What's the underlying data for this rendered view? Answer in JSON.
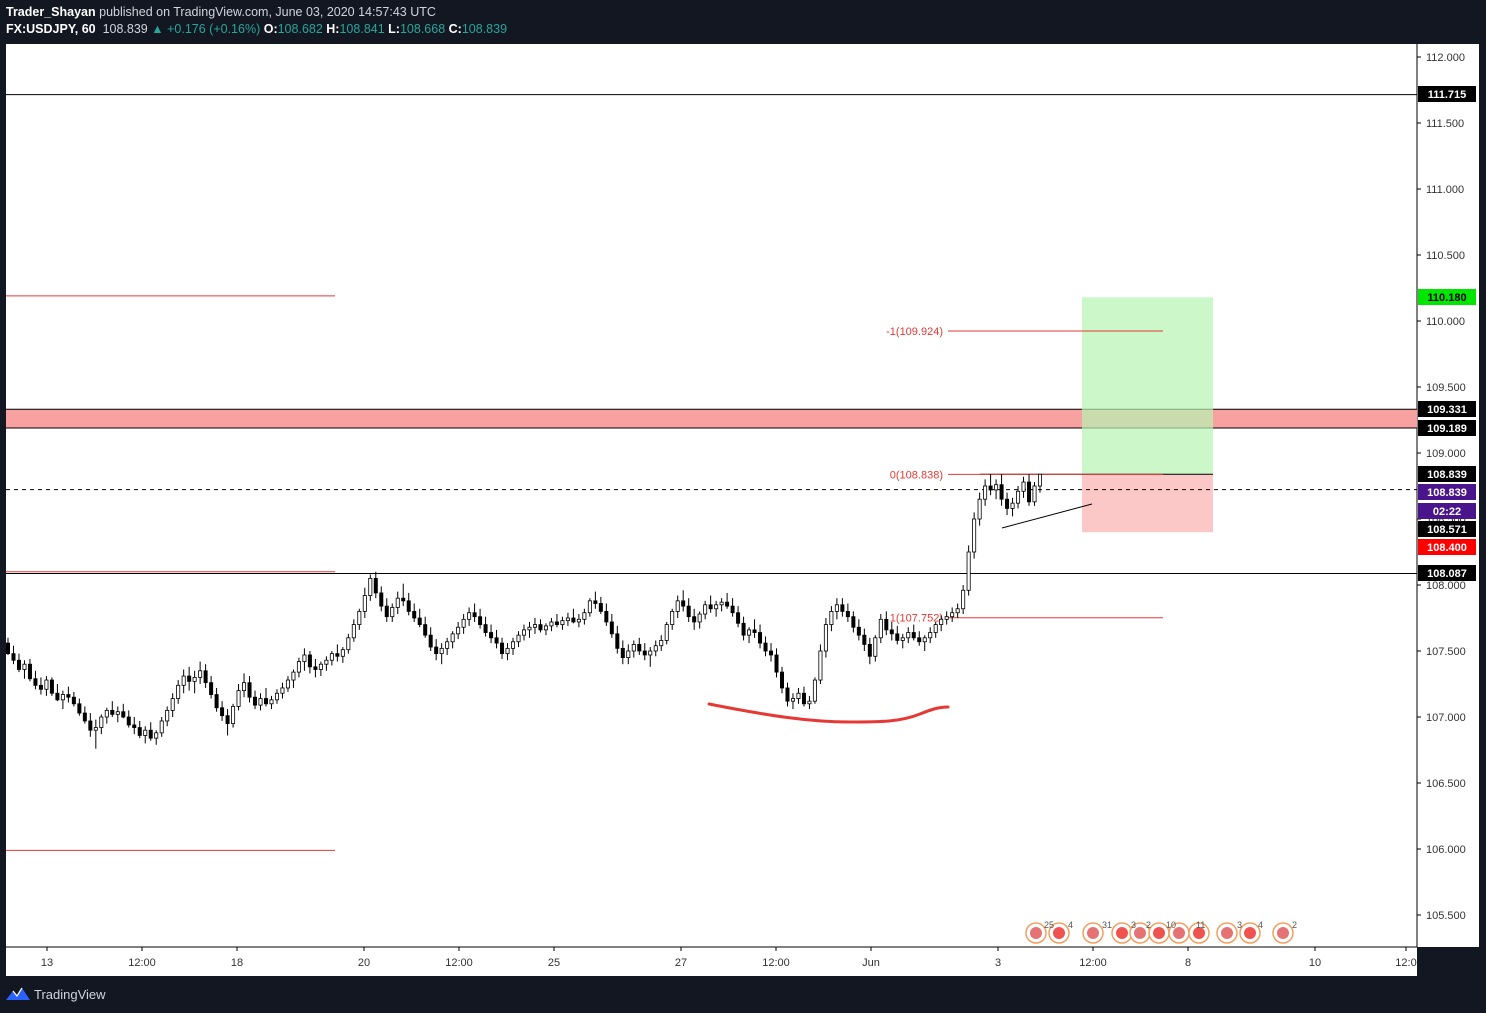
{
  "header": {
    "publisher": "Trader_Shayan",
    "published_text": "published on TradingView.com, June 03, 2020 14:57:43 UTC",
    "symbol": "FX:USDJPY, 60",
    "last": "108.839",
    "change": "+0.176 (+0.16%)",
    "o_label": "O:",
    "o_value": "108.682",
    "h_label": "H:",
    "h_value": "108.841",
    "l_label": "L:",
    "l_value": "108.668",
    "c_label": "C:",
    "c_value": "108.839"
  },
  "footer": {
    "brand": "TradingView"
  },
  "chart_data": {
    "type": "candlestick",
    "ylim": [
      105.25,
      112.3
    ],
    "y_ticks": [
      "112.000",
      "111.500",
      "111.000",
      "110.500",
      "110.000",
      "109.500",
      "109.000",
      "108.500",
      "108.000",
      "107.500",
      "107.000",
      "106.500",
      "106.000",
      "105.500"
    ],
    "x_ticks": [
      "13",
      "12:00",
      "18",
      "20",
      "12:00",
      "25",
      "27",
      "12:00",
      "Jun",
      "3",
      "12:00",
      "8",
      "10",
      "12:0"
    ],
    "price_labels": [
      {
        "value": "111.715",
        "style": "black"
      },
      {
        "value": "110.180",
        "style": "green"
      },
      {
        "value": "109.331",
        "style": "black"
      },
      {
        "value": "109.189",
        "style": "black"
      },
      {
        "value": "108.839",
        "style": "black"
      },
      {
        "value": "108.839",
        "style": "purple"
      },
      {
        "value": "02:22",
        "style": "purple"
      },
      {
        "value": "108.571",
        "style": "black"
      },
      {
        "value": "108.400",
        "style": "red"
      },
      {
        "value": "108.087",
        "style": "black"
      }
    ],
    "fib_labels": [
      {
        "text": "-1(109.924)",
        "value": 109.924
      },
      {
        "text": "0(108.838)",
        "value": 108.838
      },
      {
        "text": "1(107.752)",
        "value": 107.752
      }
    ],
    "horizontal_lines": [
      {
        "value": 111.715,
        "color": "#000000"
      },
      {
        "value": 108.087,
        "color": "#000000"
      },
      {
        "value": 110.19,
        "color": "#e53935"
      },
      {
        "value": 108.1,
        "color": "#e53935"
      },
      {
        "value": 105.99,
        "color": "#e53935"
      }
    ],
    "resistance_zone": {
      "from": 109.189,
      "to": 109.331
    },
    "position": {
      "entry": 108.839,
      "target": 110.18,
      "stop": 108.4
    },
    "current_price": 108.571,
    "event_labels": [
      "25",
      "4",
      "31",
      "3",
      "2",
      "10",
      "11",
      "3",
      "4",
      "2"
    ],
    "candles": [
      [
        107.56,
        107.6,
        107.47,
        107.48
      ],
      [
        107.48,
        107.54,
        107.4,
        107.43
      ],
      [
        107.43,
        107.48,
        107.34,
        107.36
      ],
      [
        107.36,
        107.43,
        107.29,
        107.4
      ],
      [
        107.4,
        107.44,
        107.27,
        107.29
      ],
      [
        107.29,
        107.35,
        107.21,
        107.24
      ],
      [
        107.24,
        107.3,
        107.17,
        107.21
      ],
      [
        107.21,
        107.31,
        107.16,
        107.28
      ],
      [
        107.28,
        107.3,
        107.16,
        107.18
      ],
      [
        107.18,
        107.25,
        107.12,
        107.13
      ],
      [
        107.13,
        107.2,
        107.06,
        107.17
      ],
      [
        107.17,
        107.23,
        107.11,
        107.15
      ],
      [
        107.15,
        107.19,
        107.08,
        107.1
      ],
      [
        107.1,
        107.14,
        107.01,
        107.03
      ],
      [
        107.03,
        107.08,
        106.95,
        106.97
      ],
      [
        106.97,
        107.03,
        106.85,
        106.9
      ],
      [
        106.9,
        106.98,
        106.76,
        106.92
      ],
      [
        106.92,
        107.02,
        106.87,
        107.0
      ],
      [
        107.0,
        107.07,
        106.95,
        107.05
      ],
      [
        107.05,
        107.12,
        107.0,
        107.02
      ],
      [
        107.02,
        107.08,
        106.96,
        107.04
      ],
      [
        107.04,
        107.1,
        106.99,
        107.0
      ],
      [
        107.0,
        107.05,
        106.92,
        106.94
      ],
      [
        106.94,
        107.0,
        106.87,
        106.92
      ],
      [
        106.92,
        106.97,
        106.84,
        106.86
      ],
      [
        106.86,
        106.93,
        106.8,
        106.9
      ],
      [
        106.9,
        106.96,
        106.82,
        106.84
      ],
      [
        106.84,
        106.9,
        106.79,
        106.88
      ],
      [
        106.88,
        107.0,
        106.85,
        106.97
      ],
      [
        106.97,
        107.08,
        106.93,
        107.05
      ],
      [
        107.05,
        107.18,
        107.0,
        107.14
      ],
      [
        107.14,
        107.28,
        107.1,
        107.24
      ],
      [
        107.24,
        107.36,
        107.18,
        107.31
      ],
      [
        107.31,
        107.38,
        107.2,
        107.27
      ],
      [
        107.27,
        107.35,
        107.18,
        107.3
      ],
      [
        107.3,
        107.42,
        107.25,
        107.35
      ],
      [
        107.35,
        107.4,
        107.22,
        107.26
      ],
      [
        107.26,
        107.31,
        107.14,
        107.17
      ],
      [
        107.17,
        107.22,
        107.04,
        107.07
      ],
      [
        107.07,
        107.12,
        106.97,
        107.01
      ],
      [
        107.01,
        107.06,
        106.86,
        106.95
      ],
      [
        106.95,
        107.1,
        106.92,
        107.08
      ],
      [
        107.08,
        107.25,
        107.05,
        107.2
      ],
      [
        107.2,
        107.33,
        107.15,
        107.26
      ],
      [
        107.26,
        107.31,
        107.11,
        107.15
      ],
      [
        107.15,
        107.2,
        107.06,
        107.09
      ],
      [
        107.09,
        107.18,
        107.05,
        107.14
      ],
      [
        107.14,
        107.22,
        107.08,
        107.1
      ],
      [
        107.1,
        107.16,
        107.06,
        107.13
      ],
      [
        107.13,
        107.21,
        107.1,
        107.18
      ],
      [
        107.18,
        107.26,
        107.14,
        107.22
      ],
      [
        107.22,
        107.31,
        107.19,
        107.28
      ],
      [
        107.28,
        107.36,
        107.22,
        107.34
      ],
      [
        107.34,
        107.45,
        107.3,
        107.42
      ],
      [
        107.42,
        107.52,
        107.35,
        107.47
      ],
      [
        107.47,
        107.5,
        107.33,
        107.38
      ],
      [
        107.38,
        107.44,
        107.3,
        107.36
      ],
      [
        107.36,
        107.42,
        107.31,
        107.4
      ],
      [
        107.4,
        107.46,
        107.35,
        107.43
      ],
      [
        107.43,
        107.5,
        107.39,
        107.48
      ],
      [
        107.48,
        107.55,
        107.42,
        107.46
      ],
      [
        107.46,
        107.53,
        107.41,
        107.51
      ],
      [
        107.51,
        107.63,
        107.48,
        107.6
      ],
      [
        107.6,
        107.74,
        107.57,
        107.7
      ],
      [
        107.7,
        107.82,
        107.66,
        107.8
      ],
      [
        107.8,
        107.98,
        107.75,
        107.92
      ],
      [
        107.92,
        108.08,
        107.88,
        108.05
      ],
      [
        108.05,
        108.1,
        107.9,
        107.94
      ],
      [
        107.94,
        107.99,
        107.8,
        107.84
      ],
      [
        107.84,
        107.9,
        107.72,
        107.76
      ],
      [
        107.76,
        107.86,
        107.72,
        107.83
      ],
      [
        107.83,
        107.95,
        107.78,
        107.9
      ],
      [
        107.9,
        108.01,
        107.84,
        107.88
      ],
      [
        107.88,
        107.94,
        107.77,
        107.8
      ],
      [
        107.8,
        107.86,
        107.72,
        107.75
      ],
      [
        107.75,
        107.82,
        107.68,
        107.7
      ],
      [
        107.7,
        107.76,
        107.6,
        107.62
      ],
      [
        107.62,
        107.68,
        107.5,
        107.53
      ],
      [
        107.53,
        107.59,
        107.43,
        107.48
      ],
      [
        107.48,
        107.56,
        107.4,
        107.52
      ],
      [
        107.52,
        107.6,
        107.47,
        107.57
      ],
      [
        107.57,
        107.65,
        107.52,
        107.63
      ],
      [
        107.63,
        107.72,
        107.59,
        107.68
      ],
      [
        107.68,
        107.78,
        107.63,
        107.74
      ],
      [
        107.74,
        107.83,
        107.69,
        107.79
      ],
      [
        107.79,
        107.86,
        107.72,
        107.76
      ],
      [
        107.76,
        107.82,
        107.67,
        107.7
      ],
      [
        107.7,
        107.76,
        107.61,
        107.64
      ],
      [
        107.64,
        107.7,
        107.56,
        107.6
      ],
      [
        107.6,
        107.66,
        107.52,
        107.56
      ],
      [
        107.56,
        107.6,
        107.44,
        107.48
      ],
      [
        107.48,
        107.56,
        107.43,
        107.52
      ],
      [
        107.52,
        107.6,
        107.47,
        107.57
      ],
      [
        107.57,
        107.65,
        107.53,
        107.62
      ],
      [
        107.62,
        107.7,
        107.58,
        107.66
      ],
      [
        107.66,
        107.72,
        107.6,
        107.68
      ],
      [
        107.68,
        107.75,
        107.63,
        107.7
      ],
      [
        107.7,
        107.74,
        107.64,
        107.66
      ],
      [
        107.66,
        107.71,
        107.62,
        107.69
      ],
      [
        107.69,
        107.75,
        107.65,
        107.72
      ],
      [
        107.72,
        107.78,
        107.68,
        107.7
      ],
      [
        107.7,
        107.76,
        107.66,
        107.73
      ],
      [
        107.73,
        107.79,
        107.69,
        107.75
      ],
      [
        107.75,
        107.82,
        107.71,
        107.72
      ],
      [
        107.72,
        107.78,
        107.68,
        107.74
      ],
      [
        107.74,
        107.82,
        107.7,
        107.79
      ],
      [
        107.79,
        107.9,
        107.76,
        107.88
      ],
      [
        107.88,
        107.95,
        107.82,
        107.86
      ],
      [
        107.86,
        107.91,
        107.78,
        107.8
      ],
      [
        107.8,
        107.86,
        107.69,
        107.72
      ],
      [
        107.72,
        107.78,
        107.6,
        107.63
      ],
      [
        107.63,
        107.69,
        107.48,
        107.52
      ],
      [
        107.52,
        107.58,
        107.4,
        107.45
      ],
      [
        107.45,
        107.55,
        107.4,
        107.5
      ],
      [
        107.5,
        107.58,
        107.45,
        107.55
      ],
      [
        107.55,
        107.6,
        107.47,
        107.5
      ],
      [
        107.5,
        107.56,
        107.43,
        107.47
      ],
      [
        107.47,
        107.53,
        107.38,
        107.5
      ],
      [
        107.5,
        107.58,
        107.46,
        107.54
      ],
      [
        107.54,
        107.62,
        107.5,
        107.58
      ],
      [
        107.58,
        107.72,
        107.55,
        107.7
      ],
      [
        107.7,
        107.82,
        107.66,
        107.8
      ],
      [
        107.8,
        107.92,
        107.75,
        107.88
      ],
      [
        107.88,
        107.96,
        107.8,
        107.84
      ],
      [
        107.84,
        107.9,
        107.72,
        107.76
      ],
      [
        107.76,
        107.82,
        107.66,
        107.72
      ],
      [
        107.72,
        107.8,
        107.67,
        107.78
      ],
      [
        107.78,
        107.88,
        107.74,
        107.85
      ],
      [
        107.85,
        107.92,
        107.79,
        107.82
      ],
      [
        107.82,
        107.88,
        107.76,
        107.85
      ],
      [
        107.85,
        107.9,
        107.8,
        107.87
      ],
      [
        107.87,
        107.94,
        107.82,
        107.84
      ],
      [
        107.84,
        107.9,
        107.76,
        107.79
      ],
      [
        107.79,
        107.84,
        107.68,
        107.71
      ],
      [
        107.71,
        107.76,
        107.58,
        107.62
      ],
      [
        107.62,
        107.68,
        107.56,
        107.66
      ],
      [
        107.66,
        107.74,
        107.6,
        107.64
      ],
      [
        107.64,
        107.7,
        107.52,
        107.56
      ],
      [
        107.56,
        107.61,
        107.46,
        107.5
      ],
      [
        107.5,
        107.56,
        107.42,
        107.47
      ],
      [
        107.47,
        107.52,
        107.3,
        107.34
      ],
      [
        107.34,
        107.38,
        107.18,
        107.22
      ],
      [
        107.22,
        107.26,
        107.08,
        107.12
      ],
      [
        107.12,
        107.18,
        107.06,
        107.14
      ],
      [
        107.14,
        107.22,
        107.1,
        107.18
      ],
      [
        107.18,
        107.23,
        107.08,
        107.1
      ],
      [
        107.1,
        107.16,
        107.06,
        107.12
      ],
      [
        107.12,
        107.3,
        107.1,
        107.28
      ],
      [
        107.28,
        107.55,
        107.25,
        107.5
      ],
      [
        107.5,
        107.75,
        107.45,
        107.7
      ],
      [
        107.7,
        107.84,
        107.65,
        107.8
      ],
      [
        107.8,
        107.9,
        107.74,
        107.85
      ],
      [
        107.85,
        107.9,
        107.76,
        107.8
      ],
      [
        107.8,
        107.86,
        107.72,
        107.76
      ],
      [
        107.76,
        107.8,
        107.64,
        107.68
      ],
      [
        107.68,
        107.74,
        107.58,
        107.62
      ],
      [
        107.62,
        107.67,
        107.5,
        107.55
      ],
      [
        107.55,
        107.6,
        107.4,
        107.46
      ],
      [
        107.46,
        107.62,
        107.42,
        107.6
      ],
      [
        107.6,
        107.78,
        107.56,
        107.74
      ],
      [
        107.74,
        107.8,
        107.62,
        107.66
      ],
      [
        107.66,
        107.72,
        107.58,
        107.63
      ],
      [
        107.63,
        107.69,
        107.55,
        107.58
      ],
      [
        107.58,
        107.63,
        107.52,
        107.6
      ],
      [
        107.6,
        107.68,
        107.56,
        107.64
      ],
      [
        107.64,
        107.7,
        107.58,
        107.6
      ],
      [
        107.6,
        107.65,
        107.54,
        107.57
      ],
      [
        107.57,
        107.62,
        107.5,
        107.6
      ],
      [
        107.6,
        107.68,
        107.56,
        107.64
      ],
      [
        107.64,
        107.72,
        107.6,
        107.7
      ],
      [
        107.7,
        107.77,
        107.65,
        107.74
      ],
      [
        107.74,
        107.8,
        107.7,
        107.76
      ],
      [
        107.76,
        107.83,
        107.72,
        107.79
      ],
      [
        107.79,
        107.86,
        107.75,
        107.82
      ],
      [
        107.82,
        108.0,
        107.78,
        107.96
      ],
      [
        107.96,
        108.3,
        107.92,
        108.25
      ],
      [
        108.25,
        108.55,
        108.2,
        108.5
      ],
      [
        108.5,
        108.7,
        108.45,
        108.65
      ],
      [
        108.65,
        108.8,
        108.6,
        108.75
      ],
      [
        108.75,
        108.84,
        108.68,
        108.72
      ],
      [
        108.72,
        108.8,
        108.65,
        108.76
      ],
      [
        108.76,
        108.84,
        108.6,
        108.65
      ],
      [
        108.65,
        108.7,
        108.53,
        108.58
      ],
      [
        108.58,
        108.66,
        108.52,
        108.62
      ],
      [
        108.62,
        108.75,
        108.58,
        108.71
      ],
      [
        108.71,
        108.82,
        108.66,
        108.78
      ],
      [
        108.78,
        108.84,
        108.6,
        108.63
      ],
      [
        108.63,
        108.78,
        108.6,
        108.75
      ],
      [
        108.75,
        108.84,
        108.7,
        108.839
      ]
    ]
  }
}
